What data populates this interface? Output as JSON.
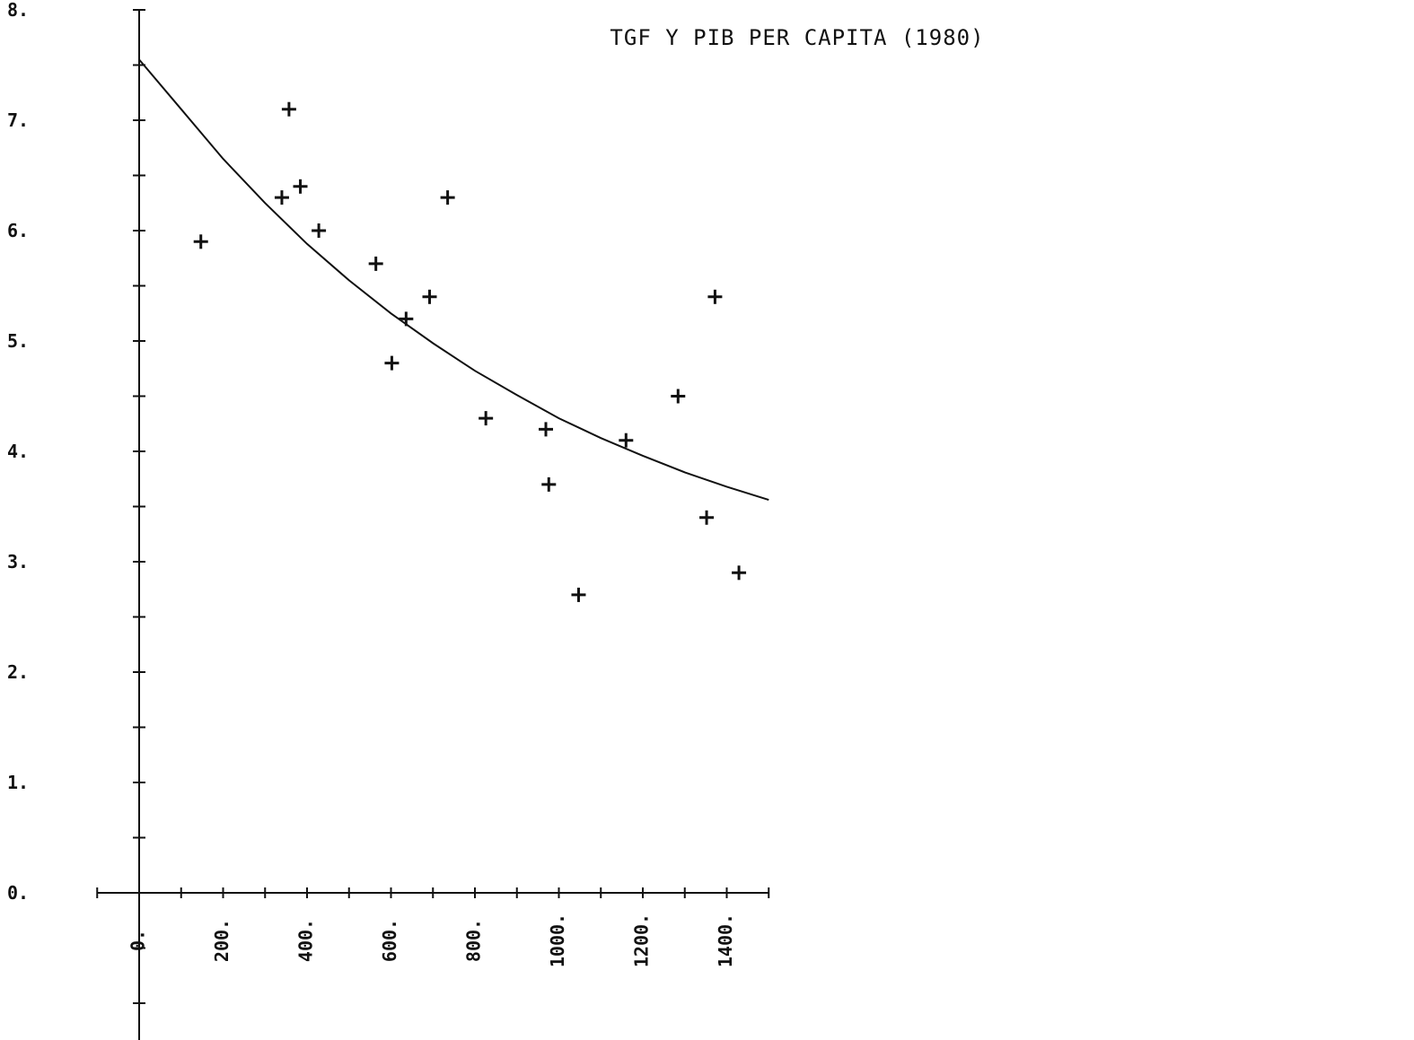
{
  "chart_data": {
    "type": "scatter",
    "title": "TGF Y PIB PER CAPITA (1980)",
    "xlabel": "",
    "ylabel": "",
    "xlim": [
      -100,
      1500
    ],
    "ylim": [
      -1,
      8
    ],
    "x_tick_values": [
      0,
      200,
      400,
      600,
      800,
      1000,
      1200,
      1400
    ],
    "x_tick_labels": [
      "0.",
      "200.",
      "400.",
      "600.",
      "800.",
      "1000.",
      "1200.",
      "1400."
    ],
    "y_tick_values": [
      0,
      1,
      2,
      3,
      4,
      5,
      6,
      7,
      8
    ],
    "y_tick_labels": [
      "0.",
      "1.",
      "2.",
      "3.",
      "4.",
      "5.",
      "6.",
      "7.",
      "8."
    ],
    "grid": false,
    "series": [
      {
        "type": "scatter",
        "marker": "plus",
        "points": [
          {
            "x": 147,
            "y": 5.9
          },
          {
            "x": 340,
            "y": 6.3
          },
          {
            "x": 357,
            "y": 7.1
          },
          {
            "x": 384,
            "y": 6.4
          },
          {
            "x": 428,
            "y": 6.0
          },
          {
            "x": 564,
            "y": 5.7
          },
          {
            "x": 602,
            "y": 4.8
          },
          {
            "x": 636,
            "y": 5.2
          },
          {
            "x": 692,
            "y": 5.4
          },
          {
            "x": 735,
            "y": 6.3
          },
          {
            "x": 826,
            "y": 4.3
          },
          {
            "x": 969,
            "y": 4.2
          },
          {
            "x": 976,
            "y": 3.7
          },
          {
            "x": 1047,
            "y": 2.7
          },
          {
            "x": 1160,
            "y": 4.1
          },
          {
            "x": 1284,
            "y": 4.5
          },
          {
            "x": 1352,
            "y": 3.4
          },
          {
            "x": 1372,
            "y": 5.4
          },
          {
            "x": 1429,
            "y": 2.9
          }
        ]
      },
      {
        "type": "line",
        "points": [
          {
            "x": 0,
            "y": 7.55
          },
          {
            "x": 100,
            "y": 7.1
          },
          {
            "x": 200,
            "y": 6.65
          },
          {
            "x": 300,
            "y": 6.25
          },
          {
            "x": 400,
            "y": 5.88
          },
          {
            "x": 500,
            "y": 5.55
          },
          {
            "x": 600,
            "y": 5.25
          },
          {
            "x": 700,
            "y": 4.98
          },
          {
            "x": 800,
            "y": 4.73
          },
          {
            "x": 900,
            "y": 4.51
          },
          {
            "x": 1000,
            "y": 4.3
          },
          {
            "x": 1100,
            "y": 4.12
          },
          {
            "x": 1200,
            "y": 3.96
          },
          {
            "x": 1300,
            "y": 3.81
          },
          {
            "x": 1400,
            "y": 3.68
          },
          {
            "x": 1500,
            "y": 3.56
          }
        ]
      }
    ]
  }
}
